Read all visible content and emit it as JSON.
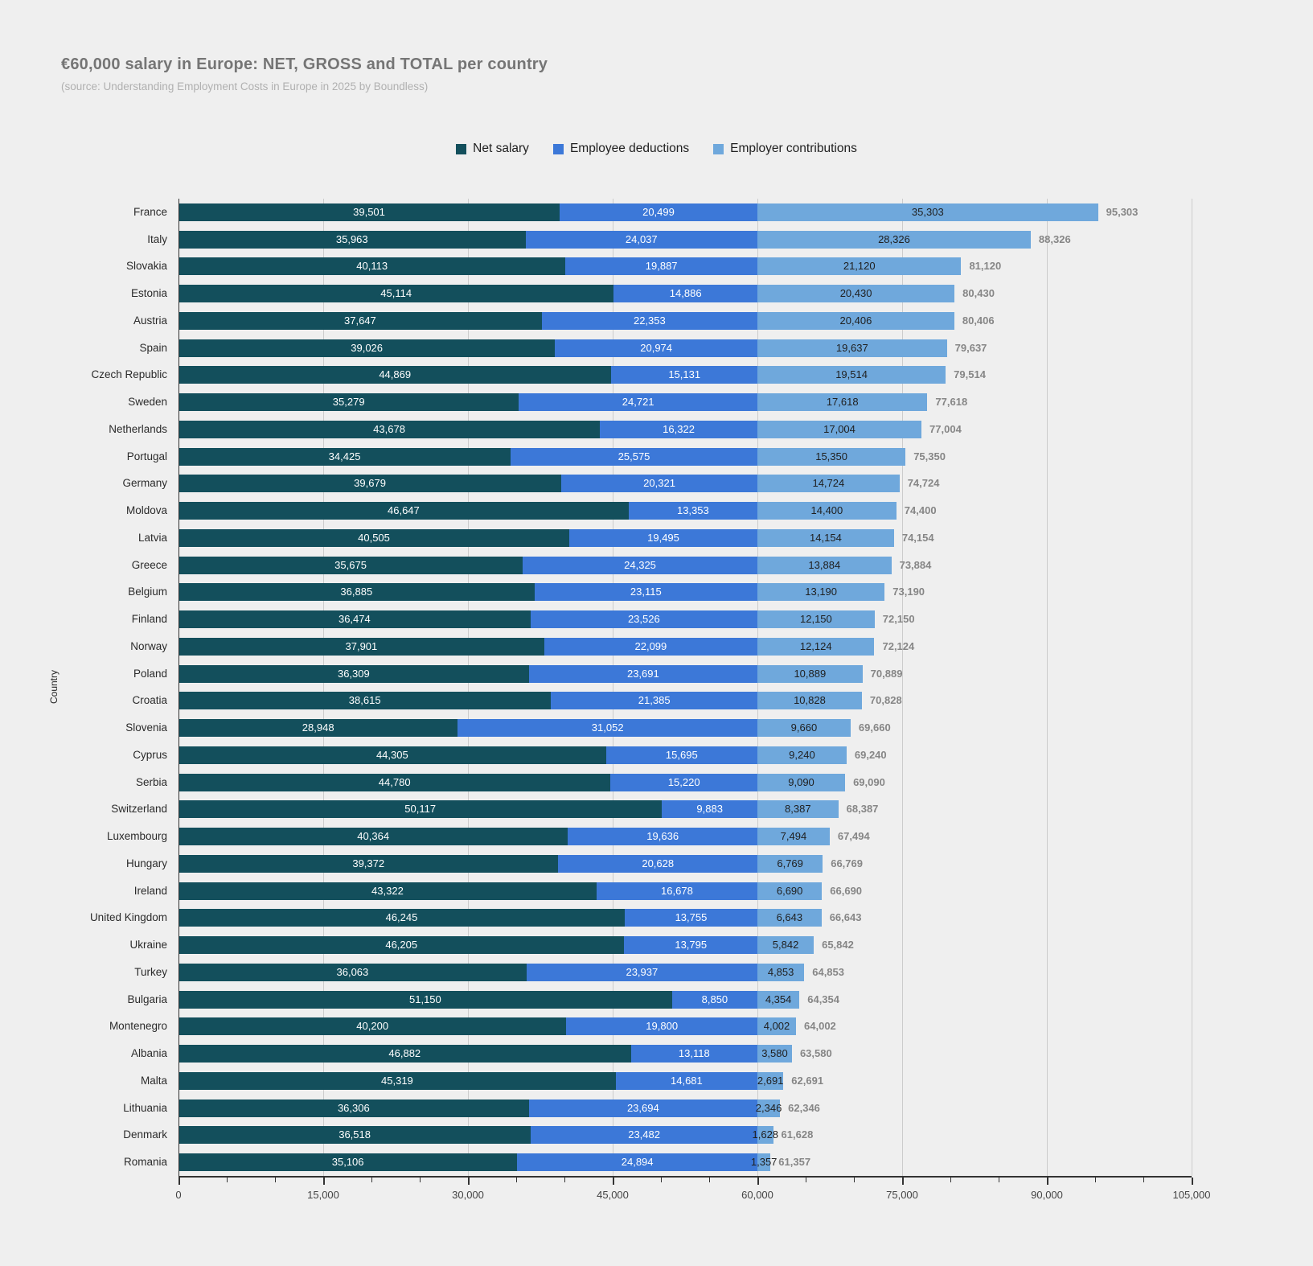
{
  "page": {
    "background": "#efefef"
  },
  "header": {
    "title": "€60,000 salary in Europe: NET, GROSS and TOTAL per country",
    "subtitle": "(source: Understanding Employment Costs in Europe in 2025 by Boundless)"
  },
  "legend": {
    "items": [
      {
        "label": "Net salary",
        "color": "#134f5c"
      },
      {
        "label": "Employee deductions",
        "color": "#3c78d8"
      },
      {
        "label": "Employer contributions",
        "color": "#6fa8dc"
      }
    ]
  },
  "chart_data": {
    "type": "bar",
    "orientation": "horizontal",
    "stacked": true,
    "title": "€60,000 salary in Europe: NET, GROSS and TOTAL per country",
    "subtitle": "(source: Understanding Employment Costs in Europe in 2025 by Boundless)",
    "xlabel": "",
    "ylabel": "Country",
    "xlim": [
      0,
      105000
    ],
    "x_ticks": [
      0,
      15000,
      30000,
      45000,
      60000,
      75000,
      90000,
      105000
    ],
    "x_tick_labels": [
      "0",
      "15,000",
      "30,000",
      "45,000",
      "60,000",
      "75,000",
      "90,000",
      "105,000"
    ],
    "x_minor_tick_step": 5000,
    "grid": true,
    "legend_position": "top",
    "categories": [
      "France",
      "Italy",
      "Slovakia",
      "Estonia",
      "Austria",
      "Spain",
      "Czech Republic",
      "Sweden",
      "Netherlands",
      "Portugal",
      "Germany",
      "Moldova",
      "Latvia",
      "Greece",
      "Belgium",
      "Finland",
      "Norway",
      "Poland",
      "Croatia",
      "Slovenia",
      "Cyprus",
      "Serbia",
      "Switzerland",
      "Luxembourg",
      "Hungary",
      "Ireland",
      "United Kingdom",
      "Ukraine",
      "Turkey",
      "Bulgaria",
      "Montenegro",
      "Albania",
      "Malta",
      "Lithuania",
      "Denmark",
      "Romania"
    ],
    "series": [
      {
        "name": "Net salary",
        "color": "#134f5c",
        "label_color": "#ffffff",
        "values": [
          39501,
          35963,
          40113,
          45114,
          37647,
          39026,
          44869,
          35279,
          43678,
          34425,
          39679,
          46647,
          40505,
          35675,
          36885,
          36474,
          37901,
          36309,
          38615,
          28948,
          44305,
          44780,
          50117,
          40364,
          39372,
          43322,
          46245,
          46205,
          36063,
          51150,
          40200,
          46882,
          45319,
          36306,
          36518,
          35106
        ]
      },
      {
        "name": "Employee deductions",
        "color": "#3c78d8",
        "label_color": "#ffffff",
        "values": [
          20499,
          24037,
          19887,
          14886,
          22353,
          20974,
          15131,
          24721,
          16322,
          25575,
          20321,
          13353,
          19495,
          24325,
          23115,
          23526,
          22099,
          23691,
          21385,
          31052,
          15695,
          15220,
          9883,
          19636,
          20628,
          16678,
          13755,
          13795,
          23937,
          8850,
          19800,
          13118,
          14681,
          23694,
          23482,
          24894
        ]
      },
      {
        "name": "Employer contributions",
        "color": "#6fa8dc",
        "label_color": "#1f1f1f",
        "values": [
          35303,
          28326,
          21120,
          20430,
          20406,
          19637,
          19514,
          17618,
          17004,
          15350,
          14724,
          14400,
          14154,
          13884,
          13190,
          12150,
          12124,
          10889,
          10828,
          9660,
          9240,
          9090,
          8387,
          7494,
          6769,
          6690,
          6643,
          5842,
          4853,
          4354,
          4002,
          3580,
          2691,
          2346,
          1628,
          1357
        ]
      }
    ],
    "totals": [
      95303,
      88326,
      81120,
      80430,
      80406,
      79637,
      79514,
      77618,
      77004,
      75350,
      74724,
      74400,
      74154,
      73884,
      73190,
      72150,
      72124,
      70889,
      70828,
      69660,
      69240,
      69090,
      68387,
      67494,
      66769,
      66690,
      66643,
      65842,
      64853,
      64354,
      64002,
      63580,
      62691,
      62346,
      61628,
      61357
    ],
    "total_label_color": "#868686"
  }
}
